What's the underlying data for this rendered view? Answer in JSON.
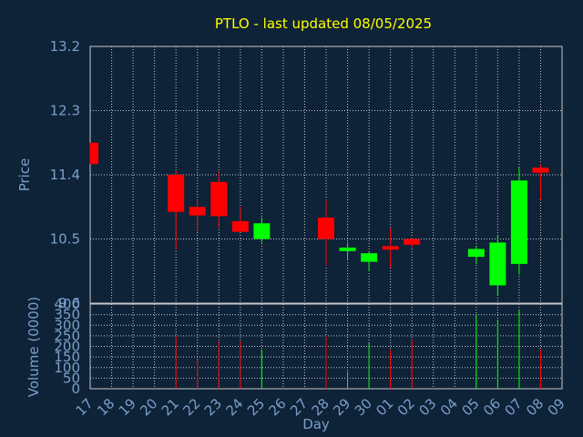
{
  "chart_data": {
    "type": "candlestick",
    "title": "PTLO - last updated 08/05/2025",
    "xlabel": "Day",
    "price_ylabel": "Price",
    "volume_ylabel": "Volume (0000)",
    "price_ylim": [
      9.6,
      13.2
    ],
    "price_yticks": [
      "13.2",
      "12.3",
      "11.4",
      "10.5",
      "9.6"
    ],
    "volume_ylim": [
      0,
      400
    ],
    "volume_yticks": [
      "400",
      "350",
      "300",
      "250",
      "200",
      "150",
      "100",
      "50",
      "0"
    ],
    "days": [
      "17",
      "18",
      "19",
      "20",
      "21",
      "22",
      "23",
      "24",
      "25",
      "26",
      "27",
      "28",
      "29",
      "30",
      "01",
      "02",
      "03",
      "04",
      "05",
      "06",
      "07",
      "08",
      "09"
    ],
    "candles": [
      {
        "day": "17",
        "open": 11.85,
        "high": 11.85,
        "low": 11.55,
        "close": 11.55
      },
      {
        "day": "21",
        "open": 11.4,
        "high": 11.45,
        "low": 10.35,
        "close": 10.88
      },
      {
        "day": "22",
        "open": 10.95,
        "high": 11.05,
        "low": 10.6,
        "close": 10.83
      },
      {
        "day": "23",
        "open": 11.3,
        "high": 11.45,
        "low": 10.65,
        "close": 10.82
      },
      {
        "day": "24",
        "open": 10.75,
        "high": 10.95,
        "low": 10.6,
        "close": 10.6
      },
      {
        "day": "25",
        "open": 10.5,
        "high": 10.8,
        "low": 10.45,
        "close": 10.72
      },
      {
        "day": "28",
        "open": 10.8,
        "high": 11.05,
        "low": 10.12,
        "close": 10.5
      },
      {
        "day": "29",
        "open": 10.33,
        "high": 10.45,
        "low": 10.2,
        "close": 10.38
      },
      {
        "day": "30",
        "open": 10.18,
        "high": 10.32,
        "low": 10.05,
        "close": 10.3
      },
      {
        "day": "01",
        "open": 10.4,
        "high": 10.65,
        "low": 10.1,
        "close": 10.35
      },
      {
        "day": "02",
        "open": 10.5,
        "high": 10.52,
        "low": 10.38,
        "close": 10.42
      },
      {
        "day": "05",
        "open": 10.25,
        "high": 10.4,
        "low": 10.15,
        "close": 10.36
      },
      {
        "day": "06",
        "open": 9.85,
        "high": 10.55,
        "low": 9.7,
        "close": 10.45
      },
      {
        "day": "07",
        "open": 10.15,
        "high": 11.5,
        "low": 10.0,
        "close": 11.32
      },
      {
        "day": "08",
        "open": 11.5,
        "high": 11.55,
        "low": 11.05,
        "close": 11.43
      }
    ],
    "volumes": [
      {
        "day": "21",
        "value": 250,
        "dir": "down"
      },
      {
        "day": "22",
        "value": 140,
        "dir": "down"
      },
      {
        "day": "23",
        "value": 225,
        "dir": "down"
      },
      {
        "day": "24",
        "value": 225,
        "dir": "down"
      },
      {
        "day": "25",
        "value": 185,
        "dir": "up"
      },
      {
        "day": "28",
        "value": 250,
        "dir": "down"
      },
      {
        "day": "29",
        "value": 80,
        "dir": "up"
      },
      {
        "day": "30",
        "value": 215,
        "dir": "up"
      },
      {
        "day": "01",
        "value": 185,
        "dir": "down"
      },
      {
        "day": "02",
        "value": 235,
        "dir": "down"
      },
      {
        "day": "05",
        "value": 350,
        "dir": "up"
      },
      {
        "day": "06",
        "value": 325,
        "dir": "up"
      },
      {
        "day": "07",
        "value": 370,
        "dir": "up"
      },
      {
        "day": "08",
        "value": 185,
        "dir": "down"
      }
    ],
    "grid": true,
    "colors": {
      "background": "#0e2238",
      "up": "#00ff00",
      "down": "#ff0000",
      "title": "#ffff00",
      "axis_text": "#7b9fc9",
      "grid": "#c8c8c8"
    }
  }
}
